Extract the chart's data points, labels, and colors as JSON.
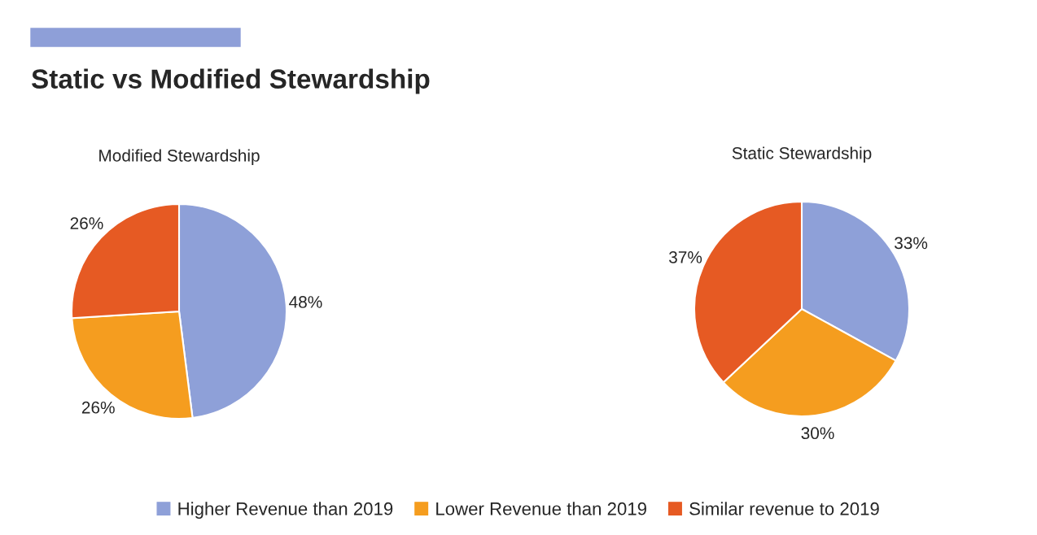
{
  "chart_data": [
    {
      "type": "other",
      "title": "Static vs Modified Stewardship"
    },
    {
      "type": "pie",
      "title": "Modified Stewardship",
      "categories": [
        "Higher Revenue than 2019",
        "Lower Revenue than 2019",
        "Similar revenue to 2019"
      ],
      "values": [
        48,
        26,
        26
      ],
      "value_labels": [
        "48%",
        "26%",
        "26%"
      ],
      "colors": [
        "#8ea0d8",
        "#f59d1f",
        "#e65a23"
      ],
      "legend": "bottom"
    },
    {
      "type": "pie",
      "title": "Static Stewardship",
      "categories": [
        null,
        null,
        null
      ],
      "values": [
        33,
        30,
        37
      ],
      "value_labels": [
        "33%",
        "30%",
        "37%"
      ],
      "colors": [
        "#8ea0d8",
        "#f59d1f",
        "#e65a23"
      ]
    }
  ]
}
